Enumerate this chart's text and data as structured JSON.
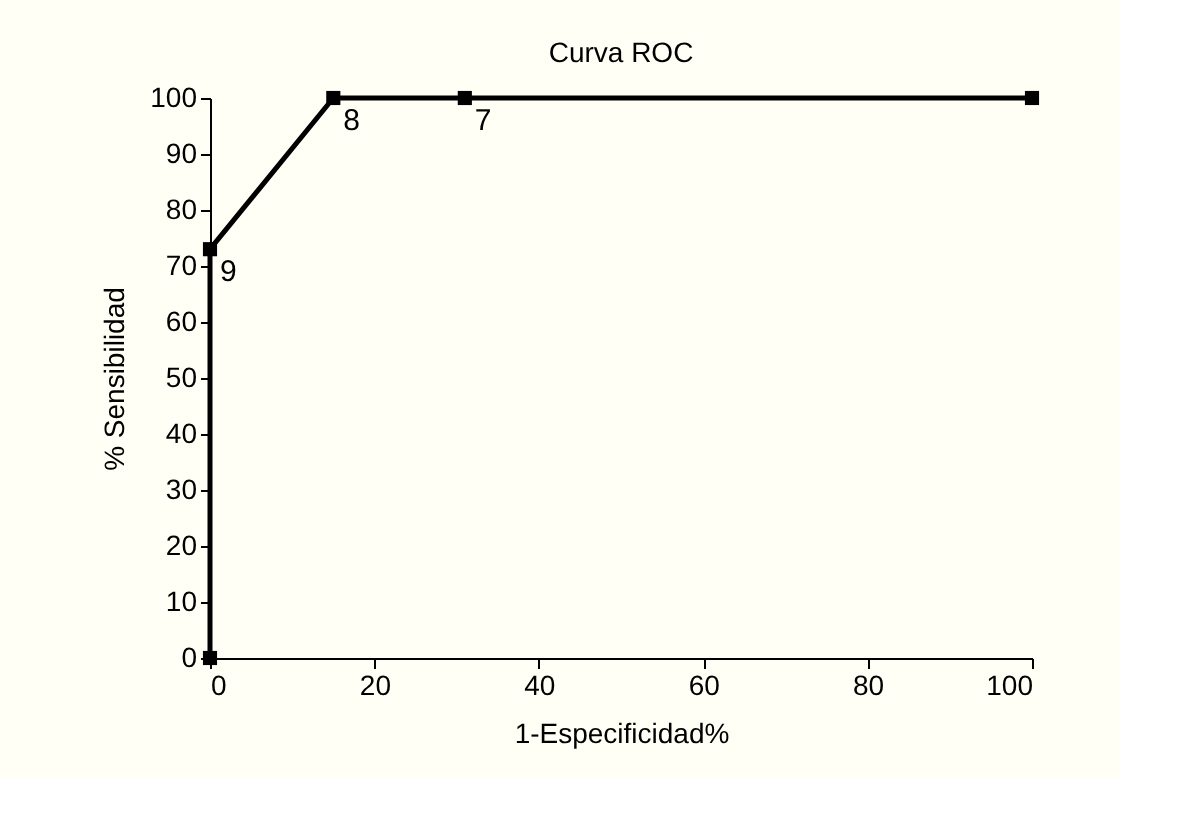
{
  "chart_data": {
    "type": "line",
    "title": "Curva ROC",
    "xlabel": "1-Especificidad%",
    "ylabel": "% Sensibilidad",
    "x": [
      0,
      0,
      15,
      31,
      100
    ],
    "series": [
      {
        "color": "#000000",
        "values": [
          0,
          73,
          100,
          100,
          100
        ]
      }
    ],
    "annotations": [
      {
        "text": "9",
        "x": 0,
        "y": 73
      },
      {
        "text": "8",
        "x": 15,
        "y": 100
      },
      {
        "text": "7",
        "x": 31,
        "y": 100
      }
    ],
    "xlim": [
      0,
      100
    ],
    "xticks": [
      0,
      20,
      40,
      60,
      80,
      100
    ],
    "ylim": [
      0,
      100
    ],
    "yticks": [
      0,
      10,
      20,
      30,
      40,
      50,
      60,
      70,
      80,
      90,
      100
    ],
    "marker": "square",
    "line_style": "solid",
    "grid": false
  }
}
